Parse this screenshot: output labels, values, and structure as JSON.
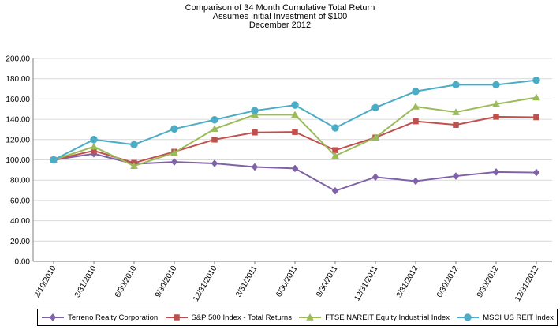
{
  "title": {
    "line1": "Comparison of 34 Month Cumulative Total Return",
    "line2": "Assumes Initial Investment of $100",
    "line3": "December 2012"
  },
  "colors": {
    "axis": "#7f7f7f",
    "grid": "#d9d9d9"
  },
  "chart_data": {
    "type": "line",
    "title": "Comparison of 34 Month Cumulative Total Return",
    "subtitle": "Assumes Initial Investment of $100 / December 2012",
    "xlabel": "",
    "ylabel": "",
    "ylim": [
      0,
      200
    ],
    "grid": true,
    "legend_position": "bottom",
    "categories": [
      "2/10/2010",
      "3/31/2010",
      "6/30/2010",
      "9/30/2010",
      "12/31/2010",
      "3/31/2011",
      "6/30/2011",
      "9/30/2011",
      "12/31/2011",
      "3/31/2012",
      "6/30/2012",
      "9/30/2012",
      "12/31/2012"
    ],
    "y_ticks": [
      "0.00",
      "20.00",
      "40.00",
      "60.00",
      "80.00",
      "100.00",
      "120.00",
      "140.00",
      "160.00",
      "180.00",
      "200.00"
    ],
    "series": [
      {
        "name": "Terreno Realty Corporation",
        "color": "#7f62a6",
        "marker": "diamond",
        "values": [
          100,
          106,
          96,
          98,
          96.5,
          93,
          91.5,
          69.5,
          83,
          79,
          84,
          88,
          87.5
        ]
      },
      {
        "name": "S&P 500 Index - Total Returns",
        "color": "#c0504d",
        "marker": "square",
        "values": [
          100,
          109,
          97,
          108,
          120,
          127,
          127.5,
          109.5,
          122,
          138,
          134.5,
          142.5,
          142
        ]
      },
      {
        "name": "FTSE NAREIT Equity Industrial Index",
        "color": "#9bbb59",
        "marker": "triangle",
        "values": [
          100,
          113,
          94,
          107,
          130.5,
          144.5,
          144.5,
          104,
          122,
          152.5,
          147,
          155,
          161.5
        ]
      },
      {
        "name": "MSCI US REIT Index",
        "color": "#4bacc6",
        "marker": "circle",
        "values": [
          100,
          120,
          115,
          130.5,
          139.5,
          148.5,
          154,
          131.5,
          151.5,
          167.5,
          174,
          174,
          178.5
        ]
      }
    ]
  }
}
